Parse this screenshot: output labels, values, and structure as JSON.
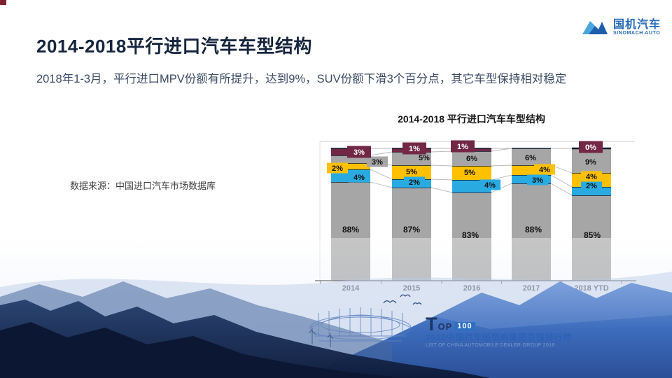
{
  "slide": {
    "title": "2014-2018平行进口汽车车型结构",
    "subtitle": "2018年1-3月，平行进口MPV份额有所提升，达到9%，SUV份额下滑3个百分点，其它车型保持相对稳定",
    "source_note": "数据来源：中国进口汽车市场数据库"
  },
  "logo": {
    "cn": "国机汽车",
    "en": "SINOMACH AUTO"
  },
  "footer": {
    "t": "T",
    "op": "OP",
    "num": "100",
    "line_cn": "2018中国汽车经销商集团百强排行榜",
    "line_en": "LIST OF CHINA AUTOMOBILE DEALER GROUP 2018"
  },
  "colors": {
    "bar_gray": "#A6A6A6",
    "bar_blue": "#29ABE2",
    "bar_yellow": "#FFC000",
    "bar_maroon": "#722845",
    "logo_blue": "#2A6BB5",
    "title_navy": "#17263E",
    "subtitle_slate": "#3D4D66",
    "footer_blue": "#2D62B8"
  },
  "chart_data": {
    "type": "bar",
    "stacked": true,
    "percent": true,
    "title": "2014-2018 平行进口汽车车型结构",
    "categories": [
      "2014",
      "2015",
      "2016",
      "2017",
      "2018 YTD"
    ],
    "series": [
      {
        "name": "suv-gray-bottom",
        "color": "#A6A6A6",
        "values": [
          88,
          87,
          83,
          88,
          85
        ],
        "labels": [
          "88%",
          "87%",
          "83%",
          "88%",
          "85%"
        ]
      },
      {
        "name": "blue",
        "color": "#29ABE2",
        "values": [
          4,
          2,
          4,
          3,
          2
        ],
        "labels": [
          "4%",
          "2%",
          "4%",
          "3%",
          "2%"
        ]
      },
      {
        "name": "yellow",
        "color": "#FFC000",
        "values": [
          2,
          5,
          5,
          4,
          4
        ],
        "labels": [
          "2%",
          "5%",
          "5%",
          "4%",
          "4%"
        ]
      },
      {
        "name": "mpv-gray-top",
        "color": "#A6A6A6",
        "values": [
          3,
          5,
          6,
          6,
          9
        ],
        "labels": [
          "3%",
          "5%",
          "6%",
          "6%",
          "9%"
        ]
      },
      {
        "name": "other-maroon",
        "color": "#722845",
        "values": [
          3,
          1,
          1,
          null,
          0
        ],
        "labels": [
          "3%",
          "1%",
          "1%",
          "",
          "0%"
        ]
      }
    ],
    "ylim": [
      0,
      100
    ],
    "legend": "none",
    "data_labels": true,
    "xlabel": "",
    "ylabel": ""
  }
}
